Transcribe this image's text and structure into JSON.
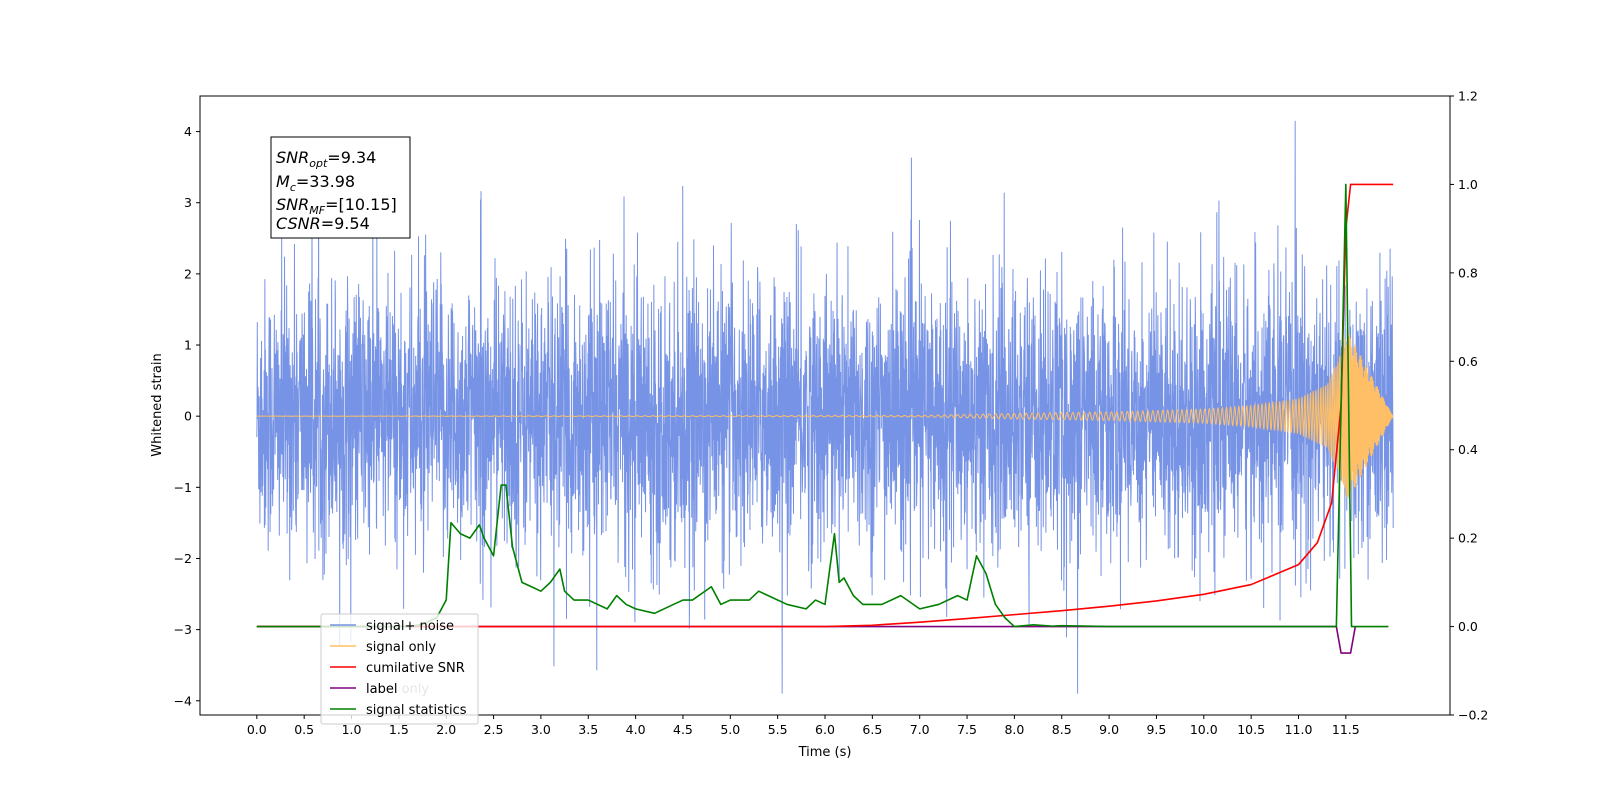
{
  "chart_data": {
    "type": "line",
    "title": "",
    "xlabel": "Time (s)",
    "ylabel": "Whitened strain",
    "y2label": "",
    "xlim": [
      -0.6,
      12.6
    ],
    "ylim": [
      -4.2,
      4.5
    ],
    "y2lim": [
      -0.2,
      1.2
    ],
    "grid": false,
    "legend_position": "lower-left",
    "x_ticks": [
      "0.0",
      "0.5",
      "1.0",
      "1.5",
      "2.0",
      "2.5",
      "3.0",
      "3.5",
      "4.0",
      "4.5",
      "5.0",
      "5.5",
      "6.0",
      "6.5",
      "7.0",
      "7.5",
      "8.0",
      "8.5",
      "9.0",
      "9.5",
      "10.0",
      "10.5",
      "11.0",
      "11.5"
    ],
    "y_ticks": [
      "4",
      "3",
      "2",
      "1",
      "0",
      "−1",
      "−2",
      "−3",
      "−4"
    ],
    "y2_ticks": [
      "1.2",
      "1.0",
      "0.8",
      "0.6",
      "0.4",
      "0.2",
      "0.0",
      "−0.2"
    ],
    "annotation": {
      "line1": {
        "sym": "SNR",
        "sub": "opt",
        "rest": "=9.34"
      },
      "line2": {
        "sym": "M",
        "sub": "c",
        "rest": "=33.98"
      },
      "line3": {
        "sym": "SNR",
        "sub": "MF",
        "rest": "=[10.15]"
      },
      "line4": {
        "sym": "CSNR",
        "sub": "",
        "rest": "=9.54"
      }
    },
    "series": [
      {
        "name": "signal+ noise",
        "color": "#7793e6",
        "axis": "left",
        "description_range": "noise band roughly -2.5 to 2.5 from t=0 to t=12, spikes to about 4.1 and -3.8"
      },
      {
        "name": "signal only",
        "color": "#ffbf66",
        "axis": "left",
        "x": [
          0,
          7.0,
          8.0,
          9.0,
          10.0,
          10.5,
          11.0,
          11.3,
          11.45,
          11.52,
          12.0
        ],
        "amplitude": [
          0.0,
          0.01,
          0.04,
          0.06,
          0.1,
          0.15,
          0.25,
          0.45,
          0.9,
          1.2,
          0.0
        ]
      },
      {
        "name": "cumilative SNR",
        "color": "#ff0000",
        "axis": "right",
        "x": [
          0,
          6.0,
          6.5,
          7.0,
          7.5,
          8.0,
          8.5,
          9.0,
          9.5,
          10.0,
          10.5,
          11.0,
          11.2,
          11.35,
          11.45,
          11.5,
          11.55,
          12.0
        ],
        "y": [
          0.0,
          0.0,
          0.003,
          0.01,
          0.018,
          0.027,
          0.036,
          0.046,
          0.058,
          0.073,
          0.095,
          0.14,
          0.19,
          0.28,
          0.5,
          0.9,
          1.0,
          1.0
        ]
      },
      {
        "name": "label",
        "color": "#800080",
        "axis": "right",
        "x": [
          0,
          11.4,
          11.45,
          11.55,
          11.6
        ],
        "y": [
          0.0,
          0.0,
          -0.06,
          -0.06,
          0.0
        ]
      },
      {
        "name": "label only",
        "color": "#f0f0f0",
        "axis": "right",
        "hidden": true
      },
      {
        "name": "signal statistics",
        "color": "#008000",
        "axis": "right",
        "x": [
          0,
          1.6,
          1.75,
          1.9,
          2.0,
          2.05,
          2.15,
          2.25,
          2.35,
          2.4,
          2.5,
          2.58,
          2.63,
          2.7,
          2.8,
          2.9,
          3.0,
          3.1,
          3.2,
          3.25,
          3.35,
          3.5,
          3.7,
          3.8,
          3.9,
          4.0,
          4.2,
          4.4,
          4.5,
          4.6,
          4.8,
          4.9,
          5.0,
          5.2,
          5.3,
          5.4,
          5.6,
          5.8,
          5.9,
          6.0,
          6.1,
          6.15,
          6.2,
          6.3,
          6.4,
          6.6,
          6.8,
          7.0,
          7.2,
          7.4,
          7.5,
          7.6,
          7.7,
          7.8,
          7.9,
          8.0,
          8.2,
          8.4,
          8.5,
          8.8,
          9.0,
          9.2,
          9.5,
          11.4,
          11.5,
          11.56,
          11.6,
          11.95
        ],
        "y": [
          0.0,
          0.0,
          0.005,
          0.02,
          0.06,
          0.235,
          0.21,
          0.2,
          0.23,
          0.2,
          0.16,
          0.32,
          0.32,
          0.18,
          0.1,
          0.09,
          0.08,
          0.1,
          0.13,
          0.08,
          0.06,
          0.06,
          0.04,
          0.07,
          0.05,
          0.04,
          0.03,
          0.05,
          0.06,
          0.06,
          0.09,
          0.05,
          0.06,
          0.06,
          0.08,
          0.07,
          0.05,
          0.04,
          0.06,
          0.05,
          0.21,
          0.1,
          0.11,
          0.07,
          0.05,
          0.05,
          0.07,
          0.04,
          0.05,
          0.07,
          0.06,
          0.16,
          0.12,
          0.05,
          0.02,
          0.0,
          0.004,
          0.001,
          0.002,
          0.001,
          0.0,
          0.0,
          0.0,
          0.0,
          1.0,
          0.0,
          0.0,
          0.0
        ]
      }
    ]
  }
}
